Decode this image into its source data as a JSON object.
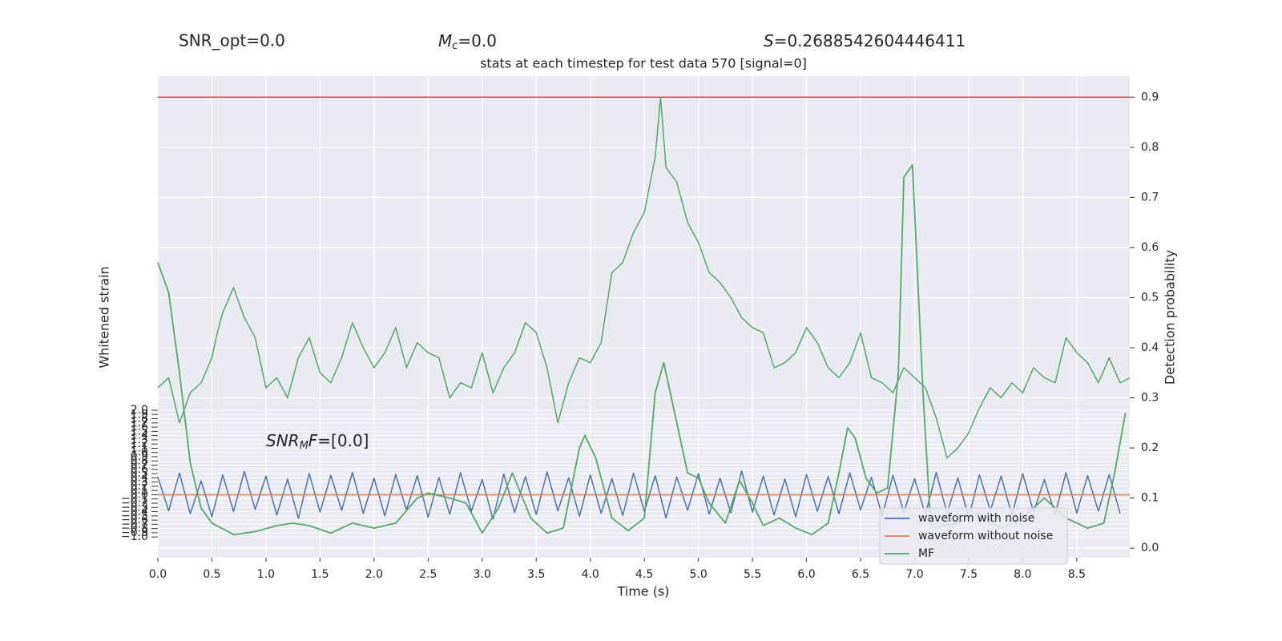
{
  "chart_data": {
    "type": "line",
    "title": "stats at each timestep for test data 570 [signal=0]",
    "stats": [
      {
        "text": "SNR_opt=0.0"
      },
      {
        "symbol": "M",
        "sub": "c",
        "text": "=0.0"
      },
      {
        "symbol": "S",
        "text": "=0.2688542604446411"
      }
    ],
    "annotation": {
      "symbol": "SNR",
      "sub": "M",
      "tail": "F",
      "text": "=[0.0]"
    },
    "x_label": "Time (s)",
    "y_label": "Whitened strain",
    "y2_label": "Detection probability",
    "xlim": [
      0,
      8.99
    ],
    "ylim": [
      -1.49,
      9.91
    ],
    "y2lim": [
      -0.019,
      0.942
    ],
    "xticks": [
      {
        "value": 0,
        "label": "0.0"
      },
      {
        "value": 0.5,
        "label": "0.5"
      },
      {
        "value": 1,
        "label": "1.0"
      },
      {
        "value": 1.5,
        "label": "1.5"
      },
      {
        "value": 2,
        "label": "2.0"
      },
      {
        "value": 2.5,
        "label": "2.5"
      },
      {
        "value": 3,
        "label": "3.0"
      },
      {
        "value": 3.5,
        "label": "3.5"
      },
      {
        "value": 4,
        "label": "4.0"
      },
      {
        "value": 4.5,
        "label": "4.5"
      },
      {
        "value": 5,
        "label": "5.0"
      },
      {
        "value": 5.5,
        "label": "5.5"
      },
      {
        "value": 6,
        "label": "6.0"
      },
      {
        "value": 6.5,
        "label": "6.5"
      },
      {
        "value": 7,
        "label": "7.0"
      },
      {
        "value": 7.5,
        "label": "7.5"
      },
      {
        "value": 8,
        "label": "8.0"
      },
      {
        "value": 8.5,
        "label": "8.5"
      }
    ],
    "yticks": [
      {
        "value": -1.0,
        "label": "−1.0"
      },
      {
        "value": -0.9,
        "label": "−0.9"
      },
      {
        "value": -0.8,
        "label": "−0.8"
      },
      {
        "value": -0.7,
        "label": "−0.7"
      },
      {
        "value": -0.6,
        "label": "−0.6"
      },
      {
        "value": -0.5,
        "label": "−0.5"
      },
      {
        "value": -0.4,
        "label": "−0.4"
      },
      {
        "value": -0.3,
        "label": "−0.3"
      },
      {
        "value": -0.2,
        "label": "−0.2"
      },
      {
        "value": -0.1,
        "label": "−0.1"
      },
      {
        "value": 0,
        "label": "0.0"
      },
      {
        "value": 0.1,
        "label": "0.1"
      },
      {
        "value": 0.2,
        "label": "0.2"
      },
      {
        "value": 0.3,
        "label": "0.3"
      },
      {
        "value": 0.4,
        "label": "0.4"
      },
      {
        "value": 0.5,
        "label": "0.5"
      },
      {
        "value": 0.6,
        "label": "0.6"
      },
      {
        "value": 0.7,
        "label": "0.7"
      },
      {
        "value": 0.8,
        "label": "0.8"
      },
      {
        "value": 0.9,
        "label": "0.9"
      },
      {
        "value": 1.0,
        "label": "1.0"
      },
      {
        "value": 1.1,
        "label": "1.1"
      },
      {
        "value": 1.2,
        "label": "1.2"
      },
      {
        "value": 1.3,
        "label": "1.3"
      },
      {
        "value": 1.4,
        "label": "1.4"
      },
      {
        "value": 1.5,
        "label": "1.5"
      },
      {
        "value": 1.6,
        "label": "1.6"
      },
      {
        "value": 1.7,
        "label": "1.7"
      },
      {
        "value": 1.8,
        "label": "1.8"
      },
      {
        "value": 1.9,
        "label": "1.9"
      },
      {
        "value": 2.0,
        "label": "2.0"
      }
    ],
    "y2ticks": [
      {
        "value": 0,
        "label": "0.0"
      },
      {
        "value": 0.1,
        "label": "0.1"
      },
      {
        "value": 0.2,
        "label": "0.2"
      },
      {
        "value": 0.3,
        "label": "0.3"
      },
      {
        "value": 0.4,
        "label": "0.4"
      },
      {
        "value": 0.5,
        "label": "0.5"
      },
      {
        "value": 0.6,
        "label": "0.6"
      },
      {
        "value": 0.7,
        "label": "0.7"
      },
      {
        "value": 0.8,
        "label": "0.8"
      },
      {
        "value": 0.9,
        "label": "0.9"
      }
    ],
    "grid": true,
    "legend": "lower right",
    "threshold": {
      "value": 0.9,
      "color": "#c44e52",
      "axis": "y2"
    },
    "probability": {
      "color": "#55a868",
      "axis": "y2",
      "x": [
        0.0,
        0.1,
        0.2,
        0.3,
        0.4,
        0.5,
        0.55,
        0.6,
        0.7,
        0.8,
        0.9,
        1.0,
        1.1,
        1.2,
        1.3,
        1.4,
        1.5,
        1.6,
        1.7,
        1.8,
        1.9,
        2.0,
        2.1,
        2.2,
        2.3,
        2.4,
        2.5,
        2.6,
        2.7,
        2.8,
        2.9,
        3.0,
        3.1,
        3.2,
        3.3,
        3.4,
        3.5,
        3.6,
        3.7,
        3.8,
        3.9,
        4.0,
        4.1,
        4.2,
        4.3,
        4.4,
        4.5,
        4.6,
        4.65,
        4.7,
        4.8,
        4.9,
        5.0,
        5.1,
        5.2,
        5.3,
        5.4,
        5.5,
        5.6,
        5.7,
        5.8,
        5.9,
        6.0,
        6.1,
        6.2,
        6.3,
        6.4,
        6.5,
        6.6,
        6.7,
        6.8,
        6.9,
        7.0,
        7.1,
        7.2,
        7.3,
        7.4,
        7.5,
        7.6,
        7.7,
        7.8,
        7.9,
        8.0,
        8.1,
        8.2,
        8.3,
        8.4,
        8.5,
        8.6,
        8.7,
        8.8,
        8.9,
        8.99
      ],
      "values": [
        0.32,
        0.34,
        0.25,
        0.31,
        0.33,
        0.38,
        0.43,
        0.47,
        0.52,
        0.46,
        0.42,
        0.32,
        0.34,
        0.3,
        0.38,
        0.42,
        0.35,
        0.33,
        0.38,
        0.45,
        0.4,
        0.36,
        0.39,
        0.44,
        0.36,
        0.41,
        0.39,
        0.38,
        0.3,
        0.33,
        0.32,
        0.39,
        0.31,
        0.36,
        0.39,
        0.45,
        0.43,
        0.36,
        0.25,
        0.33,
        0.38,
        0.37,
        0.41,
        0.55,
        0.57,
        0.63,
        0.67,
        0.78,
        0.9,
        0.76,
        0.73,
        0.65,
        0.61,
        0.55,
        0.53,
        0.5,
        0.46,
        0.44,
        0.43,
        0.36,
        0.37,
        0.39,
        0.44,
        0.41,
        0.36,
        0.34,
        0.37,
        0.43,
        0.34,
        0.33,
        0.31,
        0.36,
        0.34,
        0.32,
        0.26,
        0.18,
        0.2,
        0.23,
        0.28,
        0.32,
        0.3,
        0.33,
        0.31,
        0.36,
        0.34,
        0.33,
        0.42,
        0.39,
        0.37,
        0.33,
        0.38,
        0.33,
        0.34
      ]
    },
    "series": [
      {
        "name": "waveform with noise",
        "color": "#4c72b0",
        "axis": "y",
        "x": [
          0.0,
          0.1,
          0.2,
          0.3,
          0.4,
          0.5,
          0.6,
          0.7,
          0.8,
          0.9,
          1.0,
          1.1,
          1.2,
          1.3,
          1.4,
          1.5,
          1.6,
          1.7,
          1.8,
          1.9,
          2.0,
          2.1,
          2.2,
          2.3,
          2.4,
          2.5,
          2.6,
          2.7,
          2.8,
          2.9,
          3.0,
          3.1,
          3.2,
          3.3,
          3.4,
          3.5,
          3.6,
          3.7,
          3.8,
          3.9,
          4.0,
          4.1,
          4.2,
          4.3,
          4.4,
          4.5,
          4.6,
          4.7,
          4.8,
          4.9,
          5.0,
          5.1,
          5.2,
          5.3,
          5.4,
          5.5,
          5.6,
          5.7,
          5.8,
          5.9,
          6.0,
          6.1,
          6.2,
          6.3,
          6.4,
          6.5,
          6.6,
          6.7,
          6.8,
          6.9,
          7.0,
          7.1,
          7.2,
          7.3,
          7.4,
          7.5,
          7.6,
          7.7,
          7.8,
          7.9,
          8.0,
          8.1,
          8.2,
          8.3,
          8.4,
          8.5,
          8.6,
          8.7,
          8.8,
          8.9
        ],
        "values": [
          0.42,
          -0.38,
          0.51,
          -0.45,
          0.33,
          -0.52,
          0.47,
          -0.4,
          0.55,
          -0.35,
          0.44,
          -0.48,
          0.37,
          -0.56,
          0.5,
          -0.41,
          0.46,
          -0.37,
          0.53,
          -0.44,
          0.39,
          -0.5,
          0.48,
          -0.36,
          0.45,
          -0.53,
          0.41,
          -0.46,
          0.52,
          -0.39,
          0.36,
          -0.58,
          0.49,
          -0.42,
          0.43,
          -0.47,
          0.54,
          -0.38,
          0.4,
          -0.51,
          0.47,
          -0.44,
          0.38,
          -0.49,
          0.51,
          -0.4,
          0.45,
          -0.55,
          0.42,
          -0.37,
          0.5,
          -0.46,
          0.39,
          -0.43,
          0.56,
          -0.41,
          0.44,
          -0.48,
          0.37,
          -0.52,
          0.48,
          -0.39,
          0.43,
          -0.45,
          0.52,
          -0.36,
          0.41,
          -0.5,
          0.46,
          -0.42,
          0.38,
          -0.47,
          0.53,
          -0.44,
          0.4,
          -0.54,
          0.47,
          -0.38,
          0.44,
          -0.49,
          0.5,
          -0.41,
          0.36,
          -0.46,
          0.52,
          -0.43,
          0.45,
          -0.39,
          0.48,
          -0.44
        ]
      },
      {
        "name": "waveform without noise",
        "color": "#dd8452",
        "axis": "y",
        "x": [
          0.0,
          8.99
        ],
        "values": [
          0,
          0
        ]
      },
      {
        "name": "MF",
        "color": "#55a868",
        "axis": "y2",
        "x": [
          0.0,
          0.1,
          0.2,
          0.3,
          0.4,
          0.5,
          0.7,
          0.9,
          1.1,
          1.25,
          1.4,
          1.6,
          1.8,
          2.0,
          2.2,
          2.4,
          2.5,
          2.7,
          2.85,
          3.0,
          3.15,
          3.28,
          3.45,
          3.6,
          3.75,
          3.9,
          3.95,
          4.05,
          4.2,
          4.35,
          4.5,
          4.6,
          4.68,
          4.8,
          4.9,
          5.0,
          5.1,
          5.25,
          5.38,
          5.5,
          5.6,
          5.75,
          5.9,
          6.05,
          6.2,
          6.3,
          6.38,
          6.45,
          6.55,
          6.65,
          6.75,
          6.85,
          6.9,
          6.98,
          7.08,
          7.15,
          7.4,
          7.6,
          7.8,
          8.0,
          8.2,
          8.4,
          8.6,
          8.75,
          8.85,
          8.95
        ],
        "values": [
          0.57,
          0.51,
          0.35,
          0.17,
          0.08,
          0.05,
          0.027,
          0.033,
          0.045,
          0.05,
          0.045,
          0.03,
          0.05,
          0.04,
          0.05,
          0.1,
          0.11,
          0.1,
          0.09,
          0.03,
          0.08,
          0.15,
          0.06,
          0.03,
          0.04,
          0.2,
          0.225,
          0.18,
          0.06,
          0.035,
          0.06,
          0.31,
          0.37,
          0.25,
          0.15,
          0.14,
          0.09,
          0.05,
          0.135,
          0.09,
          0.045,
          0.06,
          0.04,
          0.027,
          0.05,
          0.15,
          0.24,
          0.22,
          0.14,
          0.11,
          0.12,
          0.35,
          0.74,
          0.765,
          0.3,
          0.04,
          0.05,
          0.07,
          0.04,
          0.06,
          0.1,
          0.06,
          0.04,
          0.05,
          0.15,
          0.27
        ]
      }
    ]
  }
}
